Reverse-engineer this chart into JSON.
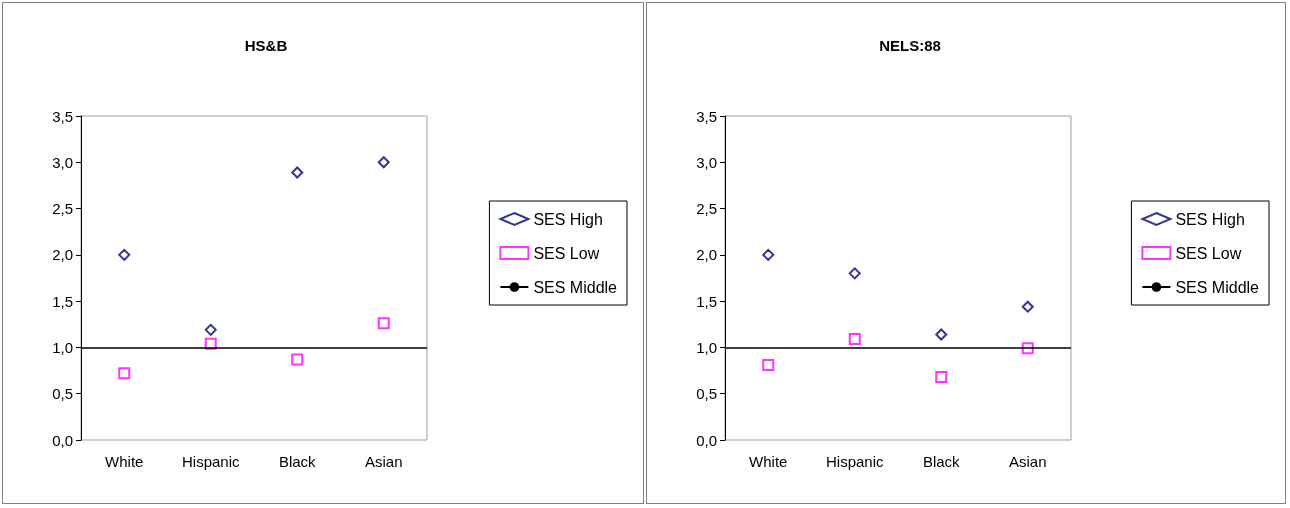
{
  "chart_data": [
    {
      "type": "scatter",
      "title": "HS&B",
      "categories": [
        "White",
        "Hispanic",
        "Black",
        "Asian"
      ],
      "series": [
        {
          "name": "SES High",
          "color": "#000080",
          "marker": "diamond",
          "values": [
            2.0,
            1.19,
            2.89,
            3.0
          ]
        },
        {
          "name": "SES Low",
          "color": "#ff00ff",
          "marker": "square",
          "values": [
            0.72,
            1.04,
            0.87,
            1.26
          ]
        }
      ],
      "ref_lines": [
        {
          "axis": "y",
          "value": 1.0,
          "label": "SES Middle",
          "color": "#000000"
        }
      ],
      "ylim": [
        0,
        3.5
      ],
      "yticks": [
        {
          "value": 0,
          "label": "0,0"
        },
        {
          "value": 0.5,
          "label": "0,5"
        },
        {
          "value": 1.0,
          "label": "1,0"
        },
        {
          "value": 1.5,
          "label": "1,5"
        },
        {
          "value": 2.0,
          "label": "2,0"
        },
        {
          "value": 2.5,
          "label": "2,5"
        },
        {
          "value": 3.0,
          "label": "3,0"
        },
        {
          "value": 3.5,
          "label": "3,5"
        }
      ],
      "grid": false,
      "legend": "right"
    },
    {
      "type": "scatter",
      "title": "NELS:88",
      "categories": [
        "White",
        "Hispanic",
        "Black",
        "Asian"
      ],
      "series": [
        {
          "name": "SES High",
          "color": "#000080",
          "marker": "diamond",
          "values": [
            2.0,
            1.8,
            1.14,
            1.44
          ]
        },
        {
          "name": "SES Low",
          "color": "#ff00ff",
          "marker": "square",
          "values": [
            0.81,
            1.09,
            0.68,
            0.99
          ]
        }
      ],
      "ref_lines": [
        {
          "axis": "y",
          "value": 1.0,
          "label": "SES Middle",
          "color": "#000000"
        }
      ],
      "ylim": [
        0,
        3.5
      ],
      "yticks": [
        {
          "value": 0,
          "label": "0,0"
        },
        {
          "value": 0.5,
          "label": "0,5"
        },
        {
          "value": 1.0,
          "label": "1,0"
        },
        {
          "value": 1.5,
          "label": "1,5"
        },
        {
          "value": 2.0,
          "label": "2,0"
        },
        {
          "value": 2.5,
          "label": "2,5"
        },
        {
          "value": 3.0,
          "label": "3,0"
        },
        {
          "value": 3.5,
          "label": "3,5"
        }
      ],
      "grid": false,
      "legend": "right"
    }
  ]
}
